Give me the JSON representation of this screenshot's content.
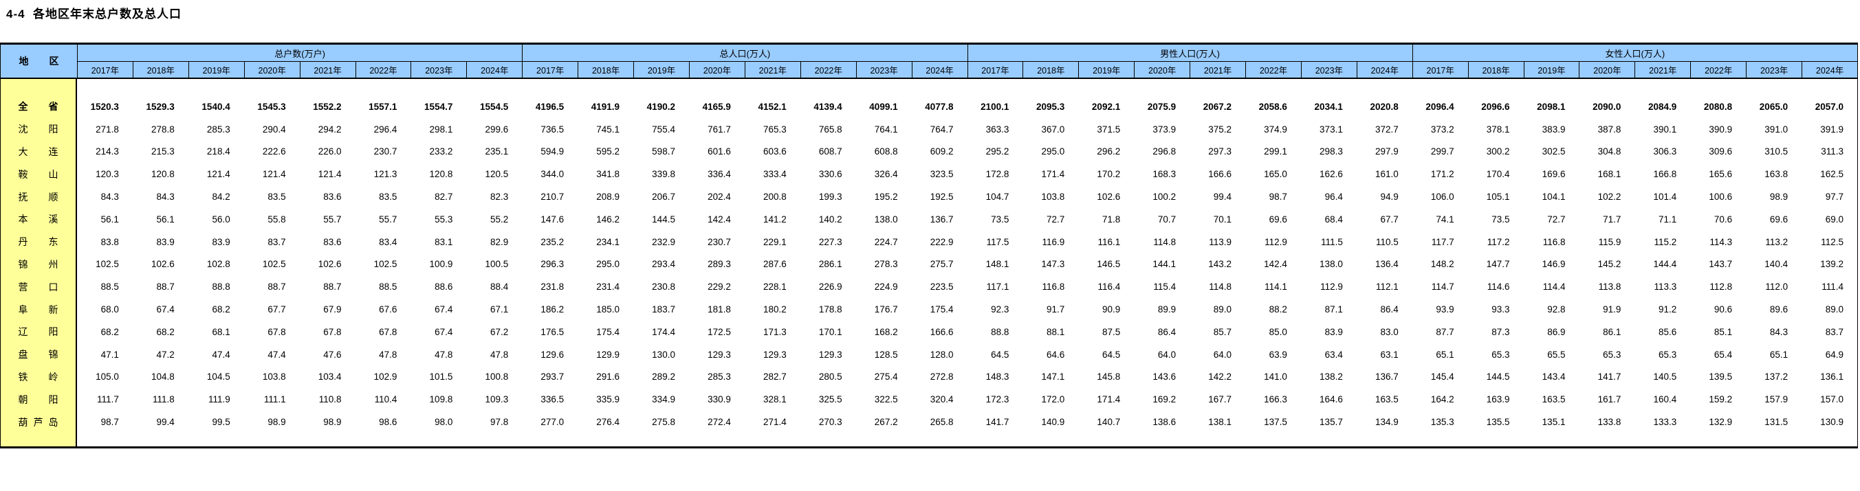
{
  "page": {
    "title": "4-4  各地区年末总户数及总人口"
  },
  "colors": {
    "header_bg": "#99CCFF",
    "region_bg": "#FFFF99",
    "border": "#000000",
    "text": "#000000"
  },
  "table": {
    "region_header": "地区",
    "years": [
      "2017年",
      "2018年",
      "2019年",
      "2020年",
      "2021年",
      "2022年",
      "2023年",
      "2024年"
    ],
    "unit_groups": [
      {
        "key": "households",
        "label": "总户数(万户)"
      },
      {
        "key": "population",
        "label": "总人口(万人)"
      },
      {
        "key": "male",
        "label": "男性人口(万人)"
      },
      {
        "key": "female",
        "label": "女性人口(万人)"
      }
    ],
    "rows": [
      {
        "region": "全省",
        "bold": true,
        "households": [
          1520.3,
          1529.3,
          1540.4,
          1545.3,
          1552.2,
          1557.1,
          1554.7,
          1554.5
        ],
        "population": [
          4196.5,
          4191.9,
          4190.2,
          4165.9,
          4152.1,
          4139.4,
          4099.1,
          4077.8
        ],
        "male": [
          2100.1,
          2095.3,
          2092.1,
          2075.9,
          2067.2,
          2058.6,
          2034.1,
          2020.8
        ],
        "female": [
          2096.4,
          2096.6,
          2098.1,
          2090.0,
          2084.9,
          2080.8,
          2065.0,
          2057.0
        ]
      },
      {
        "region": "沈阳",
        "bold": false,
        "households": [
          271.8,
          278.8,
          285.3,
          290.4,
          294.2,
          296.4,
          298.1,
          299.6
        ],
        "population": [
          736.5,
          745.1,
          755.4,
          761.7,
          765.3,
          765.8,
          764.1,
          764.7
        ],
        "male": [
          363.3,
          367.0,
          371.5,
          373.9,
          375.2,
          374.9,
          373.1,
          372.7
        ],
        "female": [
          373.2,
          378.1,
          383.9,
          387.8,
          390.1,
          390.9,
          391.0,
          391.9
        ]
      },
      {
        "region": "大连",
        "bold": false,
        "households": [
          214.3,
          215.3,
          218.4,
          222.6,
          226.0,
          230.7,
          233.2,
          235.1
        ],
        "population": [
          594.9,
          595.2,
          598.7,
          601.6,
          603.6,
          608.7,
          608.8,
          609.2
        ],
        "male": [
          295.2,
          295.0,
          296.2,
          296.8,
          297.3,
          299.1,
          298.3,
          297.9
        ],
        "female": [
          299.7,
          300.2,
          302.5,
          304.8,
          306.3,
          309.6,
          310.5,
          311.3
        ]
      },
      {
        "region": "鞍山",
        "bold": false,
        "households": [
          120.3,
          120.8,
          121.4,
          121.4,
          121.4,
          121.3,
          120.8,
          120.5
        ],
        "population": [
          344.0,
          341.8,
          339.8,
          336.4,
          333.4,
          330.6,
          326.4,
          323.5
        ],
        "male": [
          172.8,
          171.4,
          170.2,
          168.3,
          166.6,
          165.0,
          162.6,
          161.0
        ],
        "female": [
          171.2,
          170.4,
          169.6,
          168.1,
          166.8,
          165.6,
          163.8,
          162.5
        ]
      },
      {
        "region": "抚顺",
        "bold": false,
        "households": [
          84.3,
          84.3,
          84.2,
          83.5,
          83.6,
          83.5,
          82.7,
          82.3
        ],
        "population": [
          210.7,
          208.9,
          206.7,
          202.4,
          200.8,
          199.3,
          195.2,
          192.5
        ],
        "male": [
          104.7,
          103.8,
          102.6,
          100.2,
          99.4,
          98.7,
          96.4,
          94.9
        ],
        "female": [
          106.0,
          105.1,
          104.1,
          102.2,
          101.4,
          100.6,
          98.9,
          97.7
        ]
      },
      {
        "region": "本溪",
        "bold": false,
        "households": [
          56.1,
          56.1,
          56.0,
          55.8,
          55.7,
          55.7,
          55.3,
          55.2
        ],
        "population": [
          147.6,
          146.2,
          144.5,
          142.4,
          141.2,
          140.2,
          138.0,
          136.7
        ],
        "male": [
          73.5,
          72.7,
          71.8,
          70.7,
          70.1,
          69.6,
          68.4,
          67.7
        ],
        "female": [
          74.1,
          73.5,
          72.7,
          71.7,
          71.1,
          70.6,
          69.6,
          69.0
        ]
      },
      {
        "region": "丹东",
        "bold": false,
        "households": [
          83.8,
          83.9,
          83.9,
          83.7,
          83.6,
          83.4,
          83.1,
          82.9
        ],
        "population": [
          235.2,
          234.1,
          232.9,
          230.7,
          229.1,
          227.3,
          224.7,
          222.9
        ],
        "male": [
          117.5,
          116.9,
          116.1,
          114.8,
          113.9,
          112.9,
          111.5,
          110.5
        ],
        "female": [
          117.7,
          117.2,
          116.8,
          115.9,
          115.2,
          114.3,
          113.2,
          112.5
        ]
      },
      {
        "region": "锦州",
        "bold": false,
        "households": [
          102.5,
          102.6,
          102.8,
          102.5,
          102.6,
          102.5,
          100.9,
          100.5
        ],
        "population": [
          296.3,
          295.0,
          293.4,
          289.3,
          287.6,
          286.1,
          278.3,
          275.7
        ],
        "male": [
          148.1,
          147.3,
          146.5,
          144.1,
          143.2,
          142.4,
          138.0,
          136.4
        ],
        "female": [
          148.2,
          147.7,
          146.9,
          145.2,
          144.4,
          143.7,
          140.4,
          139.2
        ]
      },
      {
        "region": "营口",
        "bold": false,
        "households": [
          88.5,
          88.7,
          88.8,
          88.7,
          88.7,
          88.5,
          88.6,
          88.4
        ],
        "population": [
          231.8,
          231.4,
          230.8,
          229.2,
          228.1,
          226.9,
          224.9,
          223.5
        ],
        "male": [
          117.1,
          116.8,
          116.4,
          115.4,
          114.8,
          114.1,
          112.9,
          112.1
        ],
        "female": [
          114.7,
          114.6,
          114.4,
          113.8,
          113.3,
          112.8,
          112.0,
          111.4
        ]
      },
      {
        "region": "阜新",
        "bold": false,
        "households": [
          68.0,
          67.4,
          68.2,
          67.7,
          67.9,
          67.6,
          67.4,
          67.1
        ],
        "population": [
          186.2,
          185.0,
          183.7,
          181.8,
          180.2,
          178.8,
          176.7,
          175.4
        ],
        "male": [
          92.3,
          91.7,
          90.9,
          89.9,
          89.0,
          88.2,
          87.1,
          86.4
        ],
        "female": [
          93.9,
          93.3,
          92.8,
          91.9,
          91.2,
          90.6,
          89.6,
          89.0
        ]
      },
      {
        "region": "辽阳",
        "bold": false,
        "households": [
          68.2,
          68.2,
          68.1,
          67.8,
          67.8,
          67.8,
          67.4,
          67.2
        ],
        "population": [
          176.5,
          175.4,
          174.4,
          172.5,
          171.3,
          170.1,
          168.2,
          166.6
        ],
        "male": [
          88.8,
          88.1,
          87.5,
          86.4,
          85.7,
          85.0,
          83.9,
          83.0
        ],
        "female": [
          87.7,
          87.3,
          86.9,
          86.1,
          85.6,
          85.1,
          84.3,
          83.7
        ]
      },
      {
        "region": "盘锦",
        "bold": false,
        "households": [
          47.1,
          47.2,
          47.4,
          47.4,
          47.6,
          47.8,
          47.8,
          47.8
        ],
        "population": [
          129.6,
          129.9,
          130.0,
          129.3,
          129.3,
          129.3,
          128.5,
          128.0
        ],
        "male": [
          64.5,
          64.6,
          64.5,
          64.0,
          64.0,
          63.9,
          63.4,
          63.1
        ],
        "female": [
          65.1,
          65.3,
          65.5,
          65.3,
          65.3,
          65.4,
          65.1,
          64.9
        ]
      },
      {
        "region": "铁岭",
        "bold": false,
        "households": [
          105.0,
          104.8,
          104.5,
          103.8,
          103.4,
          102.9,
          101.5,
          100.8
        ],
        "population": [
          293.7,
          291.6,
          289.2,
          285.3,
          282.7,
          280.5,
          275.4,
          272.8
        ],
        "male": [
          148.3,
          147.1,
          145.8,
          143.6,
          142.2,
          141.0,
          138.2,
          136.7
        ],
        "female": [
          145.4,
          144.5,
          143.4,
          141.7,
          140.5,
          139.5,
          137.2,
          136.1
        ]
      },
      {
        "region": "朝阳",
        "bold": false,
        "households": [
          111.7,
          111.8,
          111.9,
          111.1,
          110.8,
          110.4,
          109.8,
          109.3
        ],
        "population": [
          336.5,
          335.9,
          334.9,
          330.9,
          328.1,
          325.5,
          322.5,
          320.4
        ],
        "male": [
          172.3,
          172.0,
          171.4,
          169.2,
          167.7,
          166.3,
          164.6,
          163.5
        ],
        "female": [
          164.2,
          163.9,
          163.5,
          161.7,
          160.4,
          159.2,
          157.9,
          157.0
        ]
      },
      {
        "region": "葫芦岛",
        "bold": false,
        "households": [
          98.7,
          99.4,
          99.5,
          98.9,
          98.9,
          98.6,
          98.0,
          97.8
        ],
        "population": [
          277.0,
          276.4,
          275.8,
          272.4,
          271.4,
          270.3,
          267.2,
          265.8
        ],
        "male": [
          141.7,
          140.9,
          140.7,
          138.6,
          138.1,
          137.5,
          135.7,
          134.9
        ],
        "female": [
          135.3,
          135.5,
          135.1,
          133.8,
          133.3,
          132.9,
          131.5,
          130.9
        ]
      }
    ]
  }
}
